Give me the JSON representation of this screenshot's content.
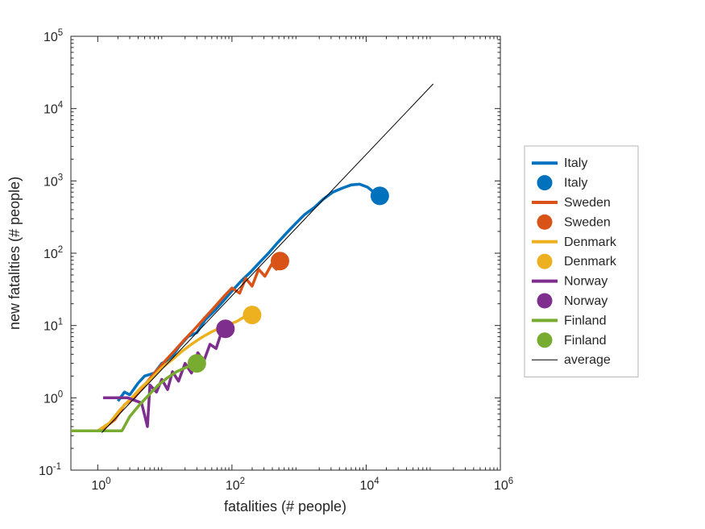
{
  "chart_data": {
    "type": "line",
    "title": "",
    "xlabel": "fatalities (# people)",
    "ylabel": "new fatalities (# people)",
    "x_scale": "log",
    "y_scale": "log",
    "xlim_log10": [
      -0.4,
      6
    ],
    "ylim_log10": [
      -1,
      5
    ],
    "x_tick_exponents": [
      0,
      2,
      4,
      6
    ],
    "y_tick_exponents": [
      -1,
      0,
      1,
      2,
      3,
      4,
      5
    ],
    "grid": "off",
    "legend_position": "right-outside",
    "series": [
      {
        "name": "Italy",
        "color": "#0072BD",
        "linewidth": 3.5,
        "end_marker": true,
        "points": [
          [
            2,
            0.9
          ],
          [
            2.5,
            1.2
          ],
          [
            3,
            1.1
          ],
          [
            4,
            1.6
          ],
          [
            5,
            2.0
          ],
          [
            7,
            2.2
          ],
          [
            9,
            3.0
          ],
          [
            12,
            3.4
          ],
          [
            16,
            5
          ],
          [
            22,
            7
          ],
          [
            30,
            8
          ],
          [
            40,
            12
          ],
          [
            55,
            16
          ],
          [
            75,
            22
          ],
          [
            100,
            30
          ],
          [
            140,
            42
          ],
          [
            190,
            55
          ],
          [
            260,
            75
          ],
          [
            350,
            100
          ],
          [
            480,
            140
          ],
          [
            650,
            190
          ],
          [
            900,
            260
          ],
          [
            1200,
            340
          ],
          [
            1700,
            430
          ],
          [
            2300,
            560
          ],
          [
            3200,
            700
          ],
          [
            4500,
            800
          ],
          [
            6000,
            880
          ],
          [
            8000,
            900
          ],
          [
            10500,
            820
          ],
          [
            13000,
            700
          ],
          [
            16000,
            620
          ]
        ]
      },
      {
        "name": "Sweden",
        "color": "#D95319",
        "linewidth": 3.5,
        "end_marker": true,
        "points": [
          [
            1.1,
            0.35
          ],
          [
            1.8,
            0.5
          ],
          [
            2.5,
            0.8
          ],
          [
            3.5,
            1.0
          ],
          [
            5,
            1.5
          ],
          [
            7,
            2.2
          ],
          [
            10,
            3.2
          ],
          [
            14,
            4.5
          ],
          [
            20,
            6.5
          ],
          [
            28,
            9
          ],
          [
            40,
            13
          ],
          [
            55,
            18
          ],
          [
            75,
            25
          ],
          [
            100,
            33
          ],
          [
            130,
            28
          ],
          [
            160,
            45
          ],
          [
            200,
            35
          ],
          [
            250,
            60
          ],
          [
            310,
            48
          ],
          [
            390,
            70
          ],
          [
            460,
            60
          ],
          [
            520,
            78
          ]
        ]
      },
      {
        "name": "Denmark",
        "color": "#EDB120",
        "linewidth": 3.5,
        "end_marker": true,
        "points": [
          [
            0.4,
            0.35
          ],
          [
            1.0,
            0.35
          ],
          [
            1.5,
            0.45
          ],
          [
            2.2,
            0.7
          ],
          [
            3.2,
            1.0
          ],
          [
            4.5,
            1.4
          ],
          [
            6.5,
            1.9
          ],
          [
            9,
            2.6
          ],
          [
            13,
            3.4
          ],
          [
            18,
            4.4
          ],
          [
            25,
            5.5
          ],
          [
            35,
            6.8
          ],
          [
            50,
            8.2
          ],
          [
            70,
            9.5
          ],
          [
            95,
            10.5
          ],
          [
            120,
            11.5
          ],
          [
            150,
            13
          ],
          [
            200,
            14
          ]
        ]
      },
      {
        "name": "Norway",
        "color": "#7E2F8E",
        "linewidth": 3.5,
        "end_marker": true,
        "points": [
          [
            1.2,
            1.0
          ],
          [
            2.8,
            1.0
          ],
          [
            4.5,
            0.85
          ],
          [
            5.5,
            0.4
          ],
          [
            6.0,
            1.5
          ],
          [
            7.5,
            1.2
          ],
          [
            9,
            1.8
          ],
          [
            11,
            1.3
          ],
          [
            13,
            2.3
          ],
          [
            16,
            1.7
          ],
          [
            20,
            3.0
          ],
          [
            25,
            2.2
          ],
          [
            31,
            4.2
          ],
          [
            38,
            3.2
          ],
          [
            47,
            5.5
          ],
          [
            58,
            4.8
          ],
          [
            68,
            7.5
          ],
          [
            80,
            9
          ]
        ]
      },
      {
        "name": "Finland",
        "color": "#77AC30",
        "linewidth": 3.5,
        "end_marker": true,
        "points": [
          [
            0.4,
            0.35
          ],
          [
            1.5,
            0.35
          ],
          [
            2.3,
            0.35
          ],
          [
            3.0,
            0.55
          ],
          [
            4.2,
            0.8
          ],
          [
            5.8,
            1.1
          ],
          [
            8,
            1.5
          ],
          [
            11,
            1.9
          ],
          [
            15,
            2.3
          ],
          [
            20,
            2.6
          ],
          [
            30,
            3.0
          ]
        ]
      },
      {
        "name": "average",
        "color": "#000000",
        "linewidth": 1,
        "end_marker": false,
        "points": [
          [
            1.15,
            0.33
          ],
          [
            100000,
            22000
          ]
        ]
      }
    ],
    "legend_entries": [
      {
        "label": "Italy",
        "color": "#0072BD",
        "sample": "line"
      },
      {
        "label": "Italy",
        "color": "#0072BD",
        "sample": "marker"
      },
      {
        "label": "Sweden",
        "color": "#D95319",
        "sample": "line"
      },
      {
        "label": "Sweden",
        "color": "#D95319",
        "sample": "marker"
      },
      {
        "label": "Denmark",
        "color": "#EDB120",
        "sample": "line"
      },
      {
        "label": "Denmark",
        "color": "#EDB120",
        "sample": "marker"
      },
      {
        "label": "Norway",
        "color": "#7E2F8E",
        "sample": "line"
      },
      {
        "label": "Norway",
        "color": "#7E2F8E",
        "sample": "marker"
      },
      {
        "label": "Finland",
        "color": "#77AC30",
        "sample": "line"
      },
      {
        "label": "Finland",
        "color": "#77AC30",
        "sample": "marker"
      },
      {
        "label": "average",
        "color": "#000000",
        "sample": "thin-line"
      }
    ]
  }
}
